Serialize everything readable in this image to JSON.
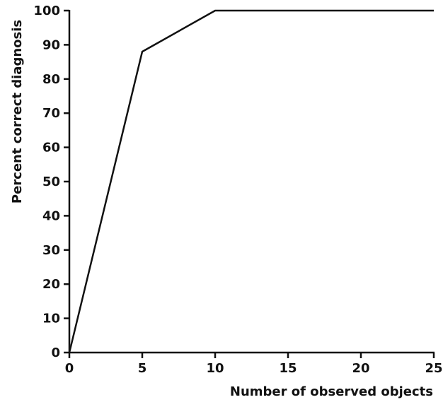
{
  "chart_data": {
    "type": "line",
    "title": "",
    "xlabel": "Number of observed objects",
    "ylabel": "Percent correct diagnosis",
    "xlim": [
      0,
      25
    ],
    "ylim": [
      0,
      100
    ],
    "xticks": [
      0,
      5,
      10,
      15,
      20,
      25
    ],
    "yticks": [
      0,
      10,
      20,
      30,
      40,
      50,
      60,
      70,
      80,
      90,
      100
    ],
    "x_tick_labels": [
      "0",
      "5",
      "10",
      "15",
      "20",
      "25"
    ],
    "y_tick_labels": [
      "0",
      "10",
      "20",
      "30",
      "40",
      "50",
      "60",
      "70",
      "80",
      "90",
      "100"
    ],
    "grid": false,
    "legend": "none",
    "series": [
      {
        "x": [
          0,
          5,
          10,
          25
        ],
        "y": [
          0,
          88,
          100,
          100
        ]
      }
    ],
    "colors": {
      "line": "#111111",
      "axis": "#111111"
    }
  }
}
